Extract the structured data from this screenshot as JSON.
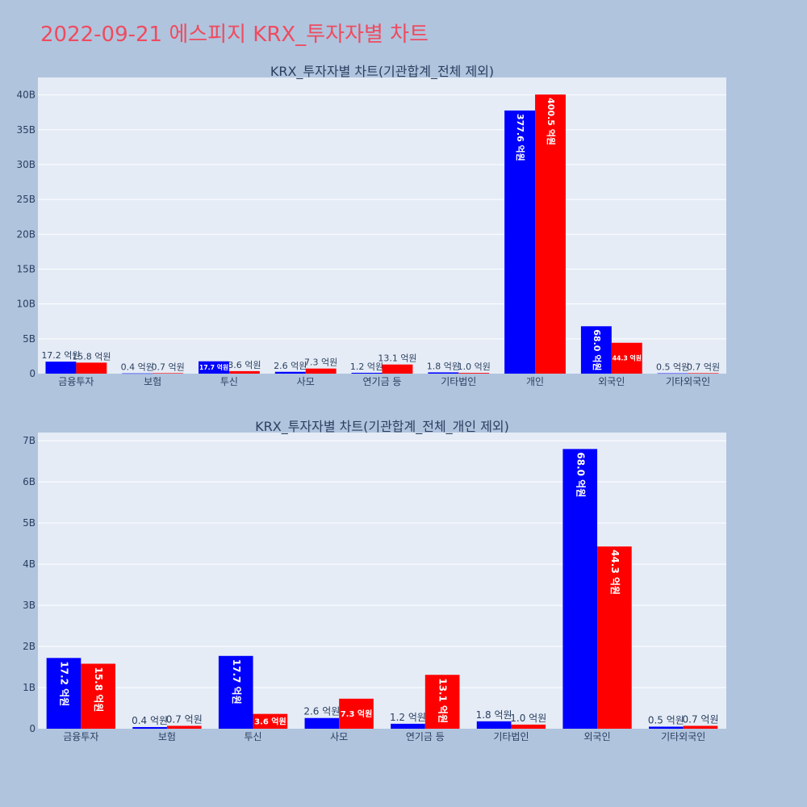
{
  "page": {
    "title": "2022-09-21 에스피지 KRX_투자자별 차트"
  },
  "colors": {
    "series_1": "#0000ff",
    "series_2": "#ff0000",
    "plot_background": "#e5ecf6",
    "page_background": "#b0c4de",
    "title": "#ef4b5f"
  },
  "chart_data": [
    {
      "type": "bar",
      "title": "KRX_투자자별 차트(기관합계_전체 제외)",
      "categories": [
        "금융투자",
        "보험",
        "투신",
        "사모",
        "연기금 등",
        "기타법인",
        "개인",
        "외국인",
        "기타외국인"
      ],
      "series": [
        {
          "values": [
            1.72,
            0.04,
            1.77,
            0.26,
            0.12,
            0.18,
            37.76,
            6.8,
            0.05
          ],
          "labels": [
            "17.2 억원",
            "0.4 억원",
            "17.7 억원",
            "2.6 억원",
            "1.2 억원",
            "1.8 억원",
            "377.6 억원",
            "68.0 억원",
            "0.5 억원"
          ]
        },
        {
          "values": [
            1.58,
            0.07,
            0.36,
            0.73,
            1.31,
            0.1,
            40.05,
            4.43,
            0.07
          ],
          "labels": [
            "15.8 억원",
            "0.7 억원",
            "3.6 억원",
            "7.3 억원",
            "13.1 억원",
            "1.0 억원",
            "400.5 억원",
            "44.3 억원",
            "0.7 억원"
          ]
        }
      ],
      "yaxis": {
        "range": [
          0,
          42.5
        ],
        "ticks": [
          0,
          5,
          10,
          15,
          20,
          25,
          30,
          35,
          40
        ],
        "tick_labels": [
          "0",
          "5B",
          "10B",
          "15B",
          "20B",
          "25B",
          "30B",
          "35B",
          "40B"
        ]
      },
      "grid": true,
      "legend": "none"
    },
    {
      "type": "bar",
      "title": "KRX_투자자별 차트(기관합계_전체_개인 제외)",
      "categories": [
        "금융투자",
        "보험",
        "투신",
        "사모",
        "연기금 등",
        "기타법인",
        "외국인",
        "기타외국인"
      ],
      "series": [
        {
          "values": [
            1.72,
            0.04,
            1.77,
            0.26,
            0.12,
            0.18,
            6.8,
            0.05
          ],
          "labels": [
            "17.2 억원",
            "0.4 억원",
            "17.7 억원",
            "2.6 억원",
            "1.2 억원",
            "1.8 억원",
            "68.0 억원",
            "0.5 억원"
          ]
        },
        {
          "values": [
            1.58,
            0.07,
            0.36,
            0.73,
            1.31,
            0.1,
            4.43,
            0.07
          ],
          "labels": [
            "15.8 억원",
            "0.7 억원",
            "3.6 억원",
            "7.3 억원",
            "13.1 억원",
            "1.0 억원",
            "44.3 억원",
            "0.7 억원"
          ]
        }
      ],
      "yaxis": {
        "range": [
          0,
          7.2
        ],
        "ticks": [
          0,
          1,
          2,
          3,
          4,
          5,
          6,
          7
        ],
        "tick_labels": [
          "0",
          "1B",
          "2B",
          "3B",
          "4B",
          "5B",
          "6B",
          "7B"
        ]
      },
      "grid": true,
      "legend": "none"
    }
  ]
}
